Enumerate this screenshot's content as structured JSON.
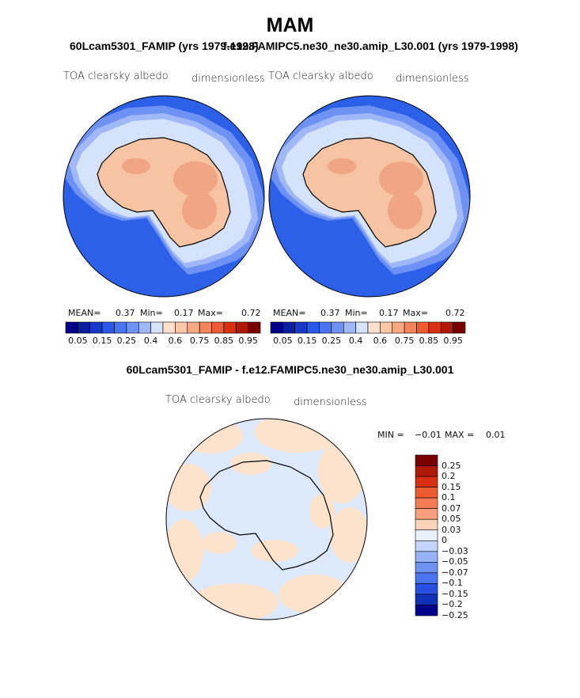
{
  "season": "MAM",
  "variable": "TOA clearsky albedo",
  "units": "dimensionless",
  "panels": [
    {
      "case_title": "60Lcam5301_FAMIP (yrs 1979-1998)",
      "mean_label": "MEAN=",
      "mean": "0.37",
      "min_label": "Min=",
      "min": "0.17",
      "max_label": "Max=",
      "max": "0.72"
    },
    {
      "case_title": "f.e12.FAMIPC5.ne30_ne30.amip_L30.001 (yrs 1979-1998)",
      "mean_label": "MEAN=",
      "mean": "0.37",
      "min_label": "Min=",
      "min": "0.17",
      "max_label": "Max=",
      "max": "0.72"
    }
  ],
  "diff": {
    "title": "60Lcam5301_FAMIP - f.e12.FAMIPC5.ne30_ne30.amip_L30.001",
    "min_label": "MIN =",
    "min": "−0.01",
    "max_label": "MAX =",
    "max": "0.01"
  },
  "chart_data": [
    {
      "type": "heatmap",
      "projection": "south polar stereographic",
      "title": "60Lcam5301_FAMIP (yrs 1979-1998)",
      "field": "TOA clearsky albedo",
      "units": "dimensionless",
      "mean": 0.37,
      "min": 0.17,
      "max": 0.72,
      "levels": [
        0.05,
        0.1,
        0.15,
        0.2,
        0.25,
        0.3,
        0.4,
        0.5,
        0.6,
        0.7,
        0.75,
        0.8,
        0.85,
        0.9,
        0.95
      ],
      "colorbar_tick_labels": [
        "0.05",
        "0.15",
        "0.25",
        "0.4",
        "0.6",
        "0.75",
        "0.85",
        "0.95"
      ]
    },
    {
      "type": "heatmap",
      "projection": "south polar stereographic",
      "title": "f.e12.FAMIPC5.ne30_ne30.amip_L30.001 (yrs 1979-1998)",
      "field": "TOA clearsky albedo",
      "units": "dimensionless",
      "mean": 0.37,
      "min": 0.17,
      "max": 0.72,
      "levels": [
        0.05,
        0.1,
        0.15,
        0.2,
        0.25,
        0.3,
        0.4,
        0.5,
        0.6,
        0.7,
        0.75,
        0.8,
        0.85,
        0.9,
        0.95
      ],
      "colorbar_tick_labels": [
        "0.05",
        "0.15",
        "0.25",
        "0.4",
        "0.6",
        "0.75",
        "0.85",
        "0.95"
      ]
    },
    {
      "type": "heatmap",
      "projection": "south polar stereographic",
      "title": "60Lcam5301_FAMIP - f.e12.FAMIPC5.ne30_ne30.amip_L30.001",
      "field": "TOA clearsky albedo",
      "units": "dimensionless",
      "min": -0.01,
      "max": 0.01,
      "levels": [
        -0.25,
        -0.2,
        -0.15,
        -0.1,
        -0.07,
        -0.05,
        -0.03,
        0,
        0.03,
        0.05,
        0.07,
        0.1,
        0.15,
        0.2,
        0.25
      ],
      "colorbar_tick_labels": [
        "0.25",
        "0.2",
        "0.15",
        "0.1",
        "0.07",
        "0.05",
        "0.03",
        "0",
        "−0.03",
        "−0.05",
        "−0.07",
        "−0.1",
        "−0.15",
        "−0.2",
        "−0.25"
      ]
    }
  ],
  "colors": {
    "abs_scale": [
      "#00008b",
      "#0a1ea0",
      "#1838c8",
      "#2a58e8",
      "#4a74f0",
      "#6e92f4",
      "#a0b8f8",
      "#d4e2fa",
      "#fde0cc",
      "#fcc8a8",
      "#f8a880",
      "#f4845a",
      "#ee5c34",
      "#d83010",
      "#b01808",
      "#7a0000"
    ],
    "diff_scale": [
      "#7a0000",
      "#b01808",
      "#d83010",
      "#ee5a30",
      "#f47c52",
      "#f8a07c",
      "#fcd2b8",
      "#e8f0fc",
      "#c4d4fa",
      "#98b4f6",
      "#6e92f2",
      "#4a74ee",
      "#2850e0",
      "#1030b8",
      "#00008b"
    ],
    "ocean": "#2c60e8",
    "land": "#f6c3a3",
    "plateau": "#f0a684",
    "diff_bg": "#dce8fc",
    "diff_pos": "#fde2cc"
  }
}
